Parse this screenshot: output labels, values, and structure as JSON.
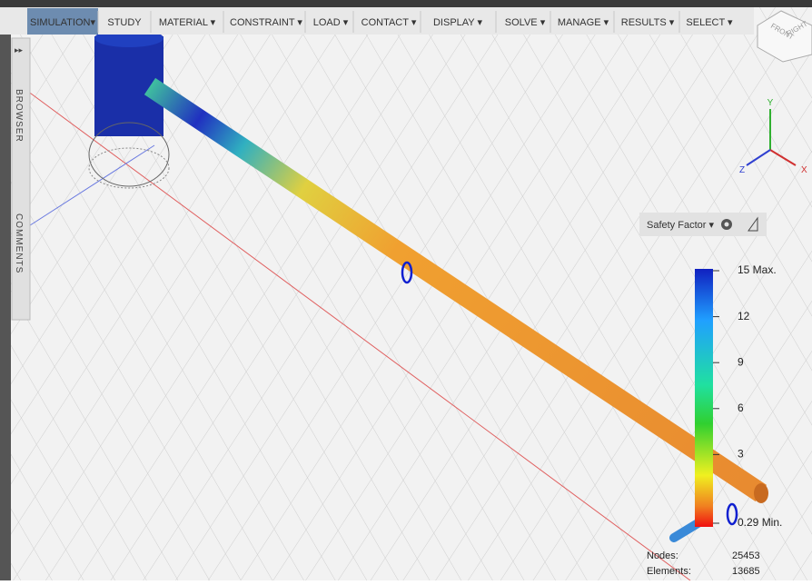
{
  "toolbar": {
    "items": [
      "SIMULATION▾",
      "STUDY",
      "MATERIAL ▾",
      "CONSTRAINT ▾",
      "LOAD ▾",
      "CONTACT ▾",
      "DISPLAY ▾",
      "SOLVE ▾",
      "MANAGE ▾",
      "RESULTS ▾",
      "SELECT ▾"
    ]
  },
  "side_panel": {
    "browser": "BROWSER",
    "comments": "COMMENTS"
  },
  "view_cube": {
    "front": "FRONT",
    "right": "RIGHT"
  },
  "axes": {
    "x": "X",
    "y": "Y",
    "z": "Z"
  },
  "legend": {
    "title": "Safety Factor ▾",
    "labels": [
      "15 Max.",
      "12",
      "9",
      "6",
      "3",
      "0.29 Min."
    ]
  },
  "stats": {
    "nodes_label": "Nodes:",
    "nodes": 25453,
    "elements_label": "Elements:",
    "elements": 13685
  }
}
